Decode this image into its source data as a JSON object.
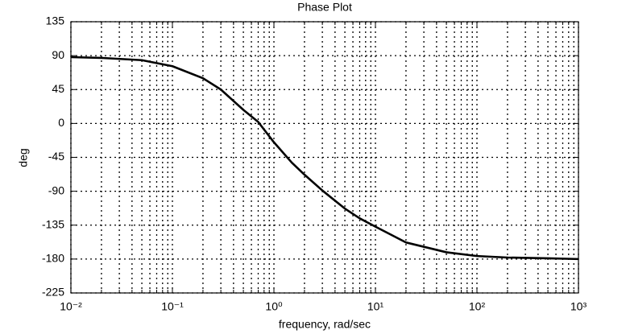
{
  "chart_data": {
    "type": "line",
    "title": "Phase Plot",
    "xlabel": "frequency, rad/sec",
    "ylabel": "deg",
    "xscale": "log",
    "grid": true,
    "xlim": [
      0.01,
      1000
    ],
    "ylim": [
      -225,
      135
    ],
    "xticks": [
      {
        "value": 0.01,
        "label": "10⁻²"
      },
      {
        "value": 0.1,
        "label": "10⁻¹"
      },
      {
        "value": 1,
        "label": "10⁰"
      },
      {
        "value": 10,
        "label": "10¹"
      },
      {
        "value": 100,
        "label": "10²"
      },
      {
        "value": 1000,
        "label": "10³"
      }
    ],
    "xminorticks": [
      0.02,
      0.03,
      0.04,
      0.05,
      0.06,
      0.07,
      0.08,
      0.09,
      0.2,
      0.3,
      0.4,
      0.5,
      0.6,
      0.7,
      0.8,
      0.9,
      2,
      3,
      4,
      5,
      6,
      7,
      8,
      9,
      20,
      30,
      40,
      50,
      60,
      70,
      80,
      90,
      200,
      300,
      400,
      500,
      600,
      700,
      800,
      900
    ],
    "yticks": [
      -225,
      -180,
      -135,
      -90,
      -45,
      0,
      45,
      90,
      135
    ],
    "color": "#000000",
    "x": [
      0.01,
      0.02,
      0.05,
      0.1,
      0.2,
      0.3,
      0.5,
      0.7,
      1,
      1.5,
      2,
      3,
      5,
      7,
      10,
      20,
      50,
      100,
      200,
      500,
      1000
    ],
    "y": [
      88,
      87,
      84,
      76,
      60,
      45,
      18,
      2,
      -25,
      -52,
      -68,
      -89,
      -113,
      -126,
      -137,
      -158,
      -171,
      -176,
      -178,
      -179,
      -180
    ]
  }
}
